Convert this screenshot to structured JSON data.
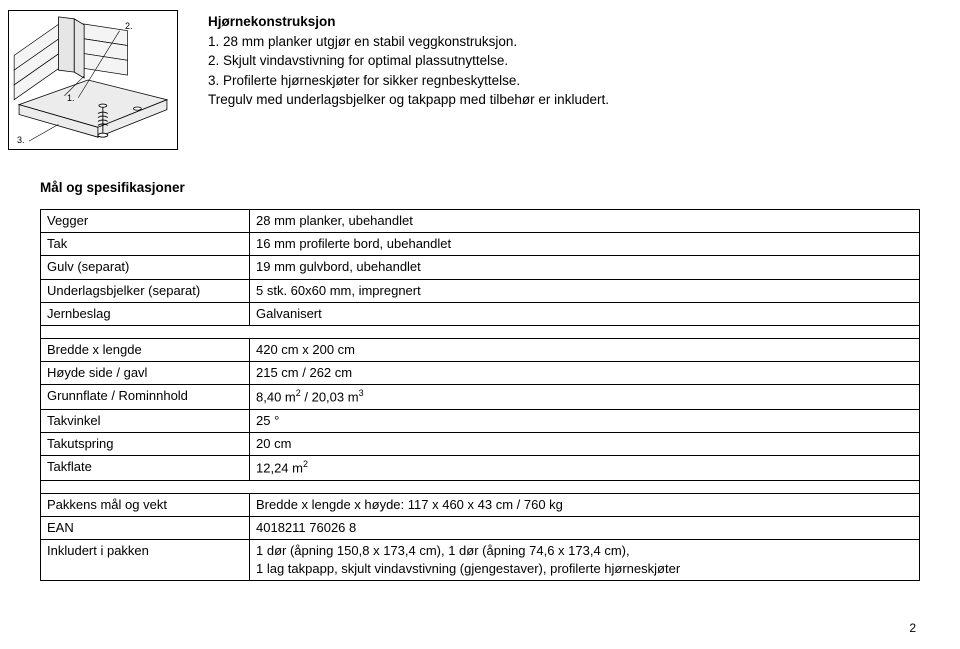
{
  "figure": {
    "labels": {
      "n1": "1.",
      "n2": "2.",
      "n3": "3."
    }
  },
  "header": {
    "title": "Hjørnekonstruksjon",
    "lines": [
      "1. 28 mm planker utgjør en stabil veggkonstruksjon.",
      "2. Skjult vindavstivning for optimal plassutnyttelse.",
      "3. Profilerte hjørneskjøter for sikker regnbeskyttelse.",
      "Tregulv med underlagsbjelker og takpapp med tilbehør er inkludert."
    ]
  },
  "spec": {
    "title": "Mål og spesifikasjoner",
    "group1": [
      {
        "label": "Vegger",
        "value": "28 mm planker, ubehandlet"
      },
      {
        "label": "Tak",
        "value": "16 mm profilerte bord, ubehandlet"
      },
      {
        "label": "Gulv (separat)",
        "value": "19 mm gulvbord, ubehandlet"
      },
      {
        "label": "Underlagsbjelker (separat)",
        "value": "5 stk. 60x60 mm, impregnert"
      },
      {
        "label": "Jernbeslag",
        "value": "Galvanisert"
      }
    ],
    "group2": [
      {
        "label": "Bredde x lengde",
        "value": "420 cm x 200 cm"
      },
      {
        "label": "Høyde side / gavl",
        "value": "215 cm / 262 cm"
      },
      {
        "label": "Grunnflate / Rominnhold",
        "value_html": "8,40 m<span class='sup'>2</span> / 20,03 m<span class='sup'>3</span>"
      },
      {
        "label": "Takvinkel",
        "value": "25 °"
      },
      {
        "label": "Takutspring",
        "value": "20 cm"
      },
      {
        "label": "Takflate",
        "value_html": "12,24 m<span class='sup'>2</span>"
      }
    ],
    "group3": [
      {
        "label": "Pakkens mål og vekt",
        "value": "Bredde x lengde x høyde: 117 x 460 x 43 cm / 760 kg"
      },
      {
        "label": "EAN",
        "value": "4018211 76026 8"
      },
      {
        "label": "Inkludert i pakken",
        "value": "1 dør (åpning 150,8 x 173,4 cm), 1 dør (åpning 74,6 x 173,4 cm),\n1 lag takpapp, skjult vindavstivning (gjengestaver), profilerte hjørneskjøter"
      }
    ]
  },
  "pagenum": "2",
  "colors": {
    "line": "#000000",
    "wood_light": "#eeeeee",
    "wood_mid": "#cfcfcf"
  }
}
